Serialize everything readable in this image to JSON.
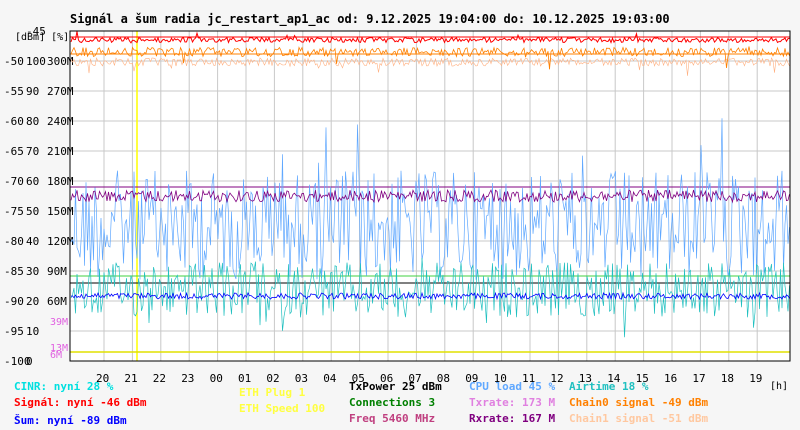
{
  "chart_data": {
    "type": "line",
    "title": "Signál a šum radia jc_restart_ap1_ac od: 9.12.2025 19:04:00 do: 10.12.2025 19:03:00",
    "y_axis_headers": [
      "[dBm]",
      "[%]"
    ],
    "x_unit": "[h]",
    "x_ticks": [
      "20",
      "21",
      "22",
      "23",
      "00",
      "01",
      "02",
      "03",
      "04",
      "05",
      "06",
      "07",
      "08",
      "09",
      "10",
      "11",
      "12",
      "13",
      "14",
      "15",
      "16",
      "17",
      "18",
      "19"
    ],
    "y_ticks_dbm": [
      "-45",
      "-50",
      "-55",
      "-60",
      "-65",
      "-70",
      "-75",
      "-80",
      "-85",
      "-90",
      "-95",
      "-100"
    ],
    "y_ticks_pct": [
      "",
      "100",
      "90",
      "80",
      "70",
      "60",
      "50",
      "40",
      "30",
      "20",
      "10",
      "0"
    ],
    "y_ticks_rate": [
      "",
      "300M",
      "270M",
      "240M",
      "210M",
      "180M",
      "150M",
      "120M",
      "90M",
      "60M",
      "",
      ""
    ],
    "rate_low_labels": [
      "39M",
      "13M",
      "6M"
    ],
    "ylim_dbm": [
      -100,
      -45
    ],
    "grid": true,
    "colors": {
      "signal": "#ff0000",
      "noise": "#0000ff",
      "cinr": "#00d0d0",
      "cpu": "#60a8ff",
      "airtime": "#20c0c0",
      "chain0": "#ff8000",
      "chain1": "#ffb080",
      "rxrate": "#800080",
      "txrate": "#e080e0",
      "eth": "#ffff00",
      "plug": "#008000"
    },
    "series": [
      {
        "name": "Signál",
        "approx_value_dbm": -46
      },
      {
        "name": "Šum",
        "approx_value_dbm": -89
      },
      {
        "name": "CINR",
        "approx_value_pct": 28
      },
      {
        "name": "Chain0 signal",
        "approx_value_dbm": -49
      },
      {
        "name": "Chain1 signal",
        "approx_value_dbm": -51
      },
      {
        "name": "CPU load",
        "approx_value_pct": 45
      },
      {
        "name": "Airtime",
        "approx_value_pct": 18
      },
      {
        "name": "Rxrate",
        "approx_value_mbps": 167
      },
      {
        "name": "Txrate",
        "approx_value_mbps": 173
      }
    ]
  },
  "legend": {
    "cinr": "CINR: nyní 28 %",
    "signal": "Signál: nyní -46 dBm",
    "noise": "Šum: nyní -89 dBm",
    "eth_plug": "ETH Plug 1",
    "eth_speed": "ETH Speed 100",
    "txpower": "TxPower 25 dBm",
    "connections": "Connections 3",
    "freq": "Freq 5460 MHz",
    "cpu": "CPU load 45 %",
    "txrate": "Txrate: 173 M",
    "rxrate": "Rxrate: 167 M",
    "airtime": "Airtime 18 %",
    "chain0": "Chain0 signal -49 dBm",
    "chain1": "Chain1 signal -51 dBm"
  }
}
